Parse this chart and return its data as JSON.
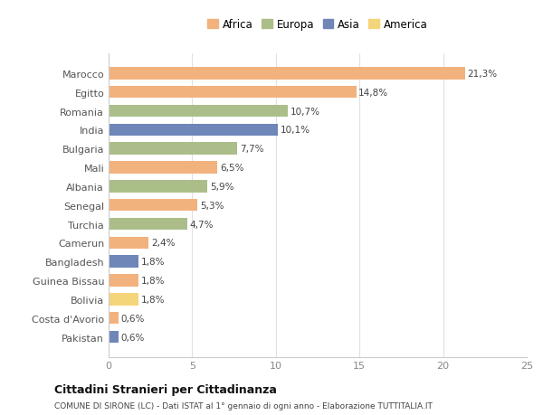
{
  "categories": [
    "Marocco",
    "Egitto",
    "Romania",
    "India",
    "Bulgaria",
    "Mali",
    "Albania",
    "Senegal",
    "Turchia",
    "Camerun",
    "Bangladesh",
    "Guinea Bissau",
    "Bolivia",
    "Costa d'Avorio",
    "Pakistan"
  ],
  "values": [
    21.3,
    14.8,
    10.7,
    10.1,
    7.7,
    6.5,
    5.9,
    5.3,
    4.7,
    2.4,
    1.8,
    1.8,
    1.8,
    0.6,
    0.6
  ],
  "labels": [
    "21,3%",
    "14,8%",
    "10,7%",
    "10,1%",
    "7,7%",
    "6,5%",
    "5,9%",
    "5,3%",
    "4,7%",
    "2,4%",
    "1,8%",
    "1,8%",
    "1,8%",
    "0,6%",
    "0,6%"
  ],
  "colors": [
    "#F2B27E",
    "#F2B27E",
    "#ABBE8A",
    "#6E86B8",
    "#ABBE8A",
    "#F2B27E",
    "#ABBE8A",
    "#F2B27E",
    "#ABBE8A",
    "#F2B27E",
    "#6E86B8",
    "#F2B27E",
    "#F5D57A",
    "#F2B27E",
    "#6E86B8"
  ],
  "legend_labels": [
    "Africa",
    "Europa",
    "Asia",
    "America"
  ],
  "legend_colors": [
    "#F2B27E",
    "#ABBE8A",
    "#6E86B8",
    "#F5D57A"
  ],
  "title": "Cittadini Stranieri per Cittadinanza",
  "subtitle": "COMUNE DI SIRONE (LC) - Dati ISTAT al 1° gennaio di ogni anno - Elaborazione TUTTITALIA.IT",
  "xlim": [
    0,
    25
  ],
  "xticks": [
    0,
    5,
    10,
    15,
    20,
    25
  ],
  "background_color": "#ffffff",
  "bar_height": 0.65
}
